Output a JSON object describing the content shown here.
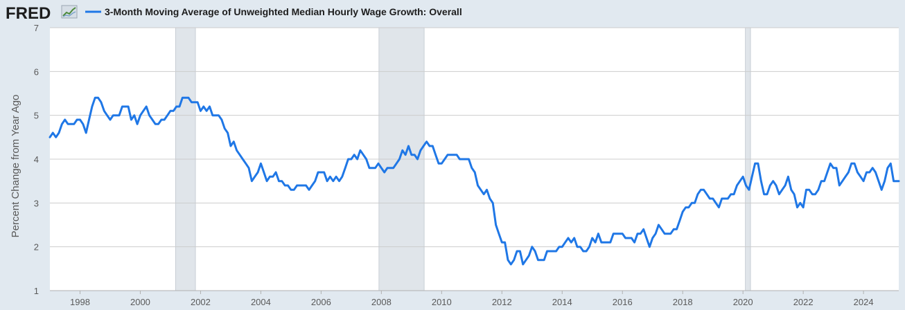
{
  "header": {
    "logo_text": "FRED",
    "logo_icon": "trend-line-icon",
    "legend_label": "3-Month Moving Average of Unweighted Median Hourly Wage Growth: Overall"
  },
  "colors": {
    "line": "#1f77e6",
    "recession": "#e0e5ea",
    "grid": "#cccccc",
    "plot_bg": "#ffffff",
    "page_bg": "#e1e9f0"
  },
  "chart_data": {
    "type": "line",
    "title": "",
    "xlabel": "",
    "ylabel": "Percent Change from Year Ago",
    "xlim": [
      1997.0,
      2025.17
    ],
    "ylim": [
      1,
      7
    ],
    "x_ticks": [
      1998,
      2000,
      2002,
      2004,
      2006,
      2008,
      2010,
      2012,
      2014,
      2016,
      2018,
      2020,
      2022,
      2024
    ],
    "y_ticks": [
      1,
      2,
      3,
      4,
      5,
      6,
      7
    ],
    "grid": true,
    "recessions": [
      [
        2001.17,
        2001.83
      ],
      [
        2007.92,
        2009.42
      ],
      [
        2020.08,
        2020.25
      ]
    ],
    "series": [
      {
        "name": "3-Month Moving Average of Unweighted Median Hourly Wage Growth: Overall",
        "points": [
          [
            1997.0,
            4.5
          ],
          [
            1997.1,
            4.6
          ],
          [
            1997.2,
            4.5
          ],
          [
            1997.3,
            4.6
          ],
          [
            1997.4,
            4.8
          ],
          [
            1997.5,
            4.9
          ],
          [
            1997.6,
            4.8
          ],
          [
            1997.8,
            4.8
          ],
          [
            1997.9,
            4.9
          ],
          [
            1998.0,
            4.9
          ],
          [
            1998.1,
            4.8
          ],
          [
            1998.2,
            4.6
          ],
          [
            1998.3,
            4.9
          ],
          [
            1998.4,
            5.2
          ],
          [
            1998.5,
            5.4
          ],
          [
            1998.6,
            5.4
          ],
          [
            1998.7,
            5.3
          ],
          [
            1998.8,
            5.1
          ],
          [
            1998.9,
            5.0
          ],
          [
            1999.0,
            4.9
          ],
          [
            1999.1,
            5.0
          ],
          [
            1999.3,
            5.0
          ],
          [
            1999.4,
            5.2
          ],
          [
            1999.6,
            5.2
          ],
          [
            1999.7,
            4.9
          ],
          [
            1999.8,
            5.0
          ],
          [
            1999.9,
            4.8
          ],
          [
            2000.0,
            5.0
          ],
          [
            2000.1,
            5.1
          ],
          [
            2000.2,
            5.2
          ],
          [
            2000.3,
            5.0
          ],
          [
            2000.4,
            4.9
          ],
          [
            2000.5,
            4.8
          ],
          [
            2000.6,
            4.8
          ],
          [
            2000.7,
            4.9
          ],
          [
            2000.8,
            4.9
          ],
          [
            2000.9,
            5.0
          ],
          [
            2001.0,
            5.1
          ],
          [
            2001.1,
            5.1
          ],
          [
            2001.2,
            5.2
          ],
          [
            2001.3,
            5.2
          ],
          [
            2001.4,
            5.4
          ],
          [
            2001.6,
            5.4
          ],
          [
            2001.7,
            5.3
          ],
          [
            2001.8,
            5.3
          ],
          [
            2001.9,
            5.3
          ],
          [
            2002.0,
            5.1
          ],
          [
            2002.1,
            5.2
          ],
          [
            2002.2,
            5.1
          ],
          [
            2002.3,
            5.2
          ],
          [
            2002.4,
            5.0
          ],
          [
            2002.5,
            5.0
          ],
          [
            2002.6,
            5.0
          ],
          [
            2002.7,
            4.9
          ],
          [
            2002.8,
            4.7
          ],
          [
            2002.9,
            4.6
          ],
          [
            2003.0,
            4.3
          ],
          [
            2003.1,
            4.4
          ],
          [
            2003.2,
            4.2
          ],
          [
            2003.3,
            4.1
          ],
          [
            2003.4,
            4.0
          ],
          [
            2003.5,
            3.9
          ],
          [
            2003.6,
            3.8
          ],
          [
            2003.7,
            3.5
          ],
          [
            2003.8,
            3.6
          ],
          [
            2003.9,
            3.7
          ],
          [
            2004.0,
            3.9
          ],
          [
            2004.1,
            3.7
          ],
          [
            2004.2,
            3.5
          ],
          [
            2004.3,
            3.6
          ],
          [
            2004.4,
            3.6
          ],
          [
            2004.5,
            3.7
          ],
          [
            2004.6,
            3.5
          ],
          [
            2004.7,
            3.5
          ],
          [
            2004.8,
            3.4
          ],
          [
            2004.9,
            3.4
          ],
          [
            2005.0,
            3.3
          ],
          [
            2005.1,
            3.3
          ],
          [
            2005.2,
            3.4
          ],
          [
            2005.3,
            3.4
          ],
          [
            2005.4,
            3.4
          ],
          [
            2005.5,
            3.4
          ],
          [
            2005.6,
            3.3
          ],
          [
            2005.7,
            3.4
          ],
          [
            2005.8,
            3.5
          ],
          [
            2005.9,
            3.7
          ],
          [
            2006.0,
            3.7
          ],
          [
            2006.1,
            3.7
          ],
          [
            2006.2,
            3.5
          ],
          [
            2006.3,
            3.6
          ],
          [
            2006.4,
            3.5
          ],
          [
            2006.5,
            3.6
          ],
          [
            2006.6,
            3.5
          ],
          [
            2006.7,
            3.6
          ],
          [
            2006.8,
            3.8
          ],
          [
            2006.9,
            4.0
          ],
          [
            2007.0,
            4.0
          ],
          [
            2007.1,
            4.1
          ],
          [
            2007.2,
            4.0
          ],
          [
            2007.3,
            4.2
          ],
          [
            2007.4,
            4.1
          ],
          [
            2007.5,
            4.0
          ],
          [
            2007.6,
            3.8
          ],
          [
            2007.7,
            3.8
          ],
          [
            2007.8,
            3.8
          ],
          [
            2007.9,
            3.9
          ],
          [
            2008.0,
            3.8
          ],
          [
            2008.1,
            3.7
          ],
          [
            2008.2,
            3.8
          ],
          [
            2008.3,
            3.8
          ],
          [
            2008.4,
            3.8
          ],
          [
            2008.5,
            3.9
          ],
          [
            2008.6,
            4.0
          ],
          [
            2008.7,
            4.2
          ],
          [
            2008.8,
            4.1
          ],
          [
            2008.9,
            4.3
          ],
          [
            2009.0,
            4.1
          ],
          [
            2009.1,
            4.1
          ],
          [
            2009.2,
            4.0
          ],
          [
            2009.3,
            4.2
          ],
          [
            2009.4,
            4.3
          ],
          [
            2009.5,
            4.4
          ],
          [
            2009.6,
            4.3
          ],
          [
            2009.7,
            4.3
          ],
          [
            2009.8,
            4.1
          ],
          [
            2009.9,
            3.9
          ],
          [
            2010.0,
            3.9
          ],
          [
            2010.1,
            4.0
          ],
          [
            2010.2,
            4.1
          ],
          [
            2010.3,
            4.1
          ],
          [
            2010.4,
            4.1
          ],
          [
            2010.5,
            4.1
          ],
          [
            2010.6,
            4.0
          ],
          [
            2010.7,
            4.0
          ],
          [
            2010.8,
            4.0
          ],
          [
            2010.9,
            4.0
          ],
          [
            2011.0,
            3.8
          ],
          [
            2011.1,
            3.7
          ],
          [
            2011.2,
            3.4
          ],
          [
            2011.3,
            3.3
          ],
          [
            2011.4,
            3.2
          ],
          [
            2011.5,
            3.3
          ],
          [
            2011.6,
            3.1
          ],
          [
            2011.7,
            3.0
          ],
          [
            2011.8,
            2.5
          ],
          [
            2011.9,
            2.3
          ],
          [
            2012.0,
            2.1
          ],
          [
            2012.1,
            2.1
          ],
          [
            2012.2,
            1.7
          ],
          [
            2012.3,
            1.6
          ],
          [
            2012.4,
            1.7
          ],
          [
            2012.5,
            1.9
          ],
          [
            2012.6,
            1.9
          ],
          [
            2012.7,
            1.6
          ],
          [
            2012.8,
            1.7
          ],
          [
            2012.9,
            1.8
          ],
          [
            2013.0,
            2.0
          ],
          [
            2013.1,
            1.9
          ],
          [
            2013.2,
            1.7
          ],
          [
            2013.3,
            1.7
          ],
          [
            2013.4,
            1.7
          ],
          [
            2013.5,
            1.9
          ],
          [
            2013.6,
            1.9
          ],
          [
            2013.7,
            1.9
          ],
          [
            2013.8,
            1.9
          ],
          [
            2013.9,
            2.0
          ],
          [
            2014.0,
            2.0
          ],
          [
            2014.1,
            2.1
          ],
          [
            2014.2,
            2.2
          ],
          [
            2014.3,
            2.1
          ],
          [
            2014.4,
            2.2
          ],
          [
            2014.5,
            2.0
          ],
          [
            2014.6,
            2.0
          ],
          [
            2014.7,
            1.9
          ],
          [
            2014.8,
            1.9
          ],
          [
            2014.9,
            2.0
          ],
          [
            2015.0,
            2.2
          ],
          [
            2015.1,
            2.1
          ],
          [
            2015.2,
            2.3
          ],
          [
            2015.3,
            2.1
          ],
          [
            2015.4,
            2.1
          ],
          [
            2015.5,
            2.1
          ],
          [
            2015.6,
            2.1
          ],
          [
            2015.7,
            2.3
          ],
          [
            2015.8,
            2.3
          ],
          [
            2015.9,
            2.3
          ],
          [
            2016.0,
            2.3
          ],
          [
            2016.1,
            2.2
          ],
          [
            2016.2,
            2.2
          ],
          [
            2016.3,
            2.2
          ],
          [
            2016.4,
            2.1
          ],
          [
            2016.5,
            2.3
          ],
          [
            2016.6,
            2.3
          ],
          [
            2016.7,
            2.4
          ],
          [
            2016.8,
            2.2
          ],
          [
            2016.9,
            2.0
          ],
          [
            2017.0,
            2.2
          ],
          [
            2017.1,
            2.3
          ],
          [
            2017.2,
            2.5
          ],
          [
            2017.3,
            2.4
          ],
          [
            2017.4,
            2.3
          ],
          [
            2017.5,
            2.3
          ],
          [
            2017.6,
            2.3
          ],
          [
            2017.7,
            2.4
          ],
          [
            2017.8,
            2.4
          ],
          [
            2017.9,
            2.6
          ],
          [
            2018.0,
            2.8
          ],
          [
            2018.1,
            2.9
          ],
          [
            2018.2,
            2.9
          ],
          [
            2018.3,
            3.0
          ],
          [
            2018.4,
            3.0
          ],
          [
            2018.5,
            3.2
          ],
          [
            2018.6,
            3.3
          ],
          [
            2018.7,
            3.3
          ],
          [
            2018.8,
            3.2
          ],
          [
            2018.9,
            3.1
          ],
          [
            2019.0,
            3.1
          ],
          [
            2019.1,
            3.0
          ],
          [
            2019.2,
            2.9
          ],
          [
            2019.3,
            3.1
          ],
          [
            2019.4,
            3.1
          ],
          [
            2019.5,
            3.1
          ],
          [
            2019.6,
            3.2
          ],
          [
            2019.7,
            3.2
          ],
          [
            2019.8,
            3.4
          ],
          [
            2019.9,
            3.5
          ],
          [
            2020.0,
            3.6
          ],
          [
            2020.1,
            3.4
          ],
          [
            2020.2,
            3.3
          ],
          [
            2020.3,
            3.6
          ],
          [
            2020.4,
            3.9
          ],
          [
            2020.5,
            3.9
          ],
          [
            2020.6,
            3.5
          ],
          [
            2020.7,
            3.2
          ],
          [
            2020.8,
            3.2
          ],
          [
            2020.9,
            3.4
          ],
          [
            2021.0,
            3.5
          ],
          [
            2021.1,
            3.4
          ],
          [
            2021.2,
            3.2
          ],
          [
            2021.3,
            3.3
          ],
          [
            2021.4,
            3.4
          ],
          [
            2021.5,
            3.6
          ],
          [
            2021.6,
            3.3
          ],
          [
            2021.7,
            3.2
          ],
          [
            2021.8,
            2.9
          ],
          [
            2021.9,
            3.0
          ],
          [
            2022.0,
            2.9
          ],
          [
            2022.1,
            3.3
          ],
          [
            2022.2,
            3.3
          ],
          [
            2022.3,
            3.2
          ],
          [
            2022.4,
            3.2
          ],
          [
            2022.5,
            3.3
          ],
          [
            2022.6,
            3.5
          ],
          [
            2022.7,
            3.5
          ],
          [
            2022.8,
            3.7
          ],
          [
            2022.9,
            3.9
          ],
          [
            2023.0,
            3.8
          ],
          [
            2023.1,
            3.8
          ],
          [
            2023.2,
            3.4
          ],
          [
            2023.3,
            3.5
          ],
          [
            2023.4,
            3.6
          ],
          [
            2023.5,
            3.7
          ],
          [
            2023.6,
            3.9
          ],
          [
            2023.7,
            3.9
          ],
          [
            2023.8,
            3.7
          ],
          [
            2023.9,
            3.6
          ],
          [
            2024.0,
            3.5
          ],
          [
            2024.1,
            3.7
          ],
          [
            2024.2,
            3.7
          ],
          [
            2024.3,
            3.8
          ],
          [
            2024.4,
            3.7
          ],
          [
            2024.5,
            3.5
          ],
          [
            2024.6,
            3.3
          ],
          [
            2024.7,
            3.5
          ],
          [
            2024.8,
            3.8
          ],
          [
            2024.9,
            3.9
          ],
          [
            2025.0,
            3.5
          ],
          [
            2025.1,
            3.5
          ],
          [
            2025.17,
            3.5
          ]
        ]
      }
    ]
  }
}
